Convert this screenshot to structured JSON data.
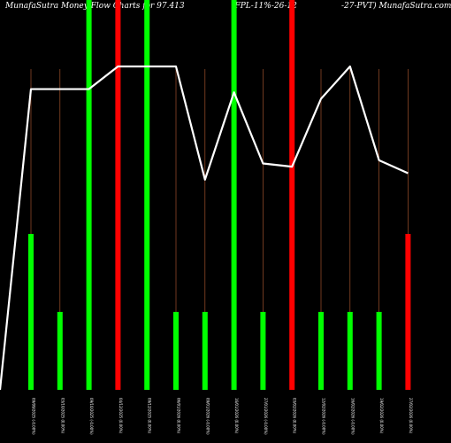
{
  "chart_data": {
    "type": "bar",
    "title_parts": [
      "MunafaSutra  Money Flow  Charts for 97.413",
      "(FPL-11%-26-12",
      "-27-PVT) MunafaSutra.com"
    ],
    "colors": {
      "background": "#000000",
      "inflow": "#00ff00",
      "outflow": "#ff0000",
      "line": "#ffffff",
      "guide": "#a0522d"
    },
    "categories": [
      "09/09/2025 (-0.00%)",
      "03/10/2025 (0.00%)",
      "09/10/2025 (-0.00%)",
      "04/12/2025 (0.00%)",
      "09/12/2025 (0.00%)",
      "06/01/2026 (0.00%)",
      "09/01/2026 (-0.00%)",
      "16/01/2026 (0.00%)",
      "27/01/2026 (-0.00%)",
      "03/02/2026 (0.00%)",
      "12/02/2026 (-0.00%)",
      "16/02/2026 (-0.00%)",
      "19/02/2026 (0.00%)",
      "27/02/2026 (0.00%)"
    ],
    "bars": [
      {
        "value": 0.4,
        "color": "inflow"
      },
      {
        "value": 0.2,
        "color": "inflow"
      },
      {
        "value": 1.0,
        "color": "inflow"
      },
      {
        "value": 1.0,
        "color": "outflow"
      },
      {
        "value": 1.0,
        "color": "inflow"
      },
      {
        "value": 0.2,
        "color": "inflow"
      },
      {
        "value": 0.2,
        "color": "inflow"
      },
      {
        "value": 1.0,
        "color": "inflow"
      },
      {
        "value": 0.2,
        "color": "inflow"
      },
      {
        "value": 1.0,
        "color": "outflow"
      },
      {
        "value": 0.2,
        "color": "inflow"
      },
      {
        "value": 0.2,
        "color": "inflow"
      },
      {
        "value": 0.2,
        "color": "inflow"
      },
      {
        "value": 0.4,
        "color": "outflow"
      }
    ],
    "line": {
      "start_value": 0.0,
      "values": [
        0.93,
        0.93,
        0.93,
        1.0,
        1.0,
        1.0,
        0.65,
        0.92,
        0.7,
        0.69,
        0.9,
        1.0,
        0.71,
        0.67
      ]
    },
    "xlabel": "",
    "ylabel": "",
    "grid": false
  }
}
